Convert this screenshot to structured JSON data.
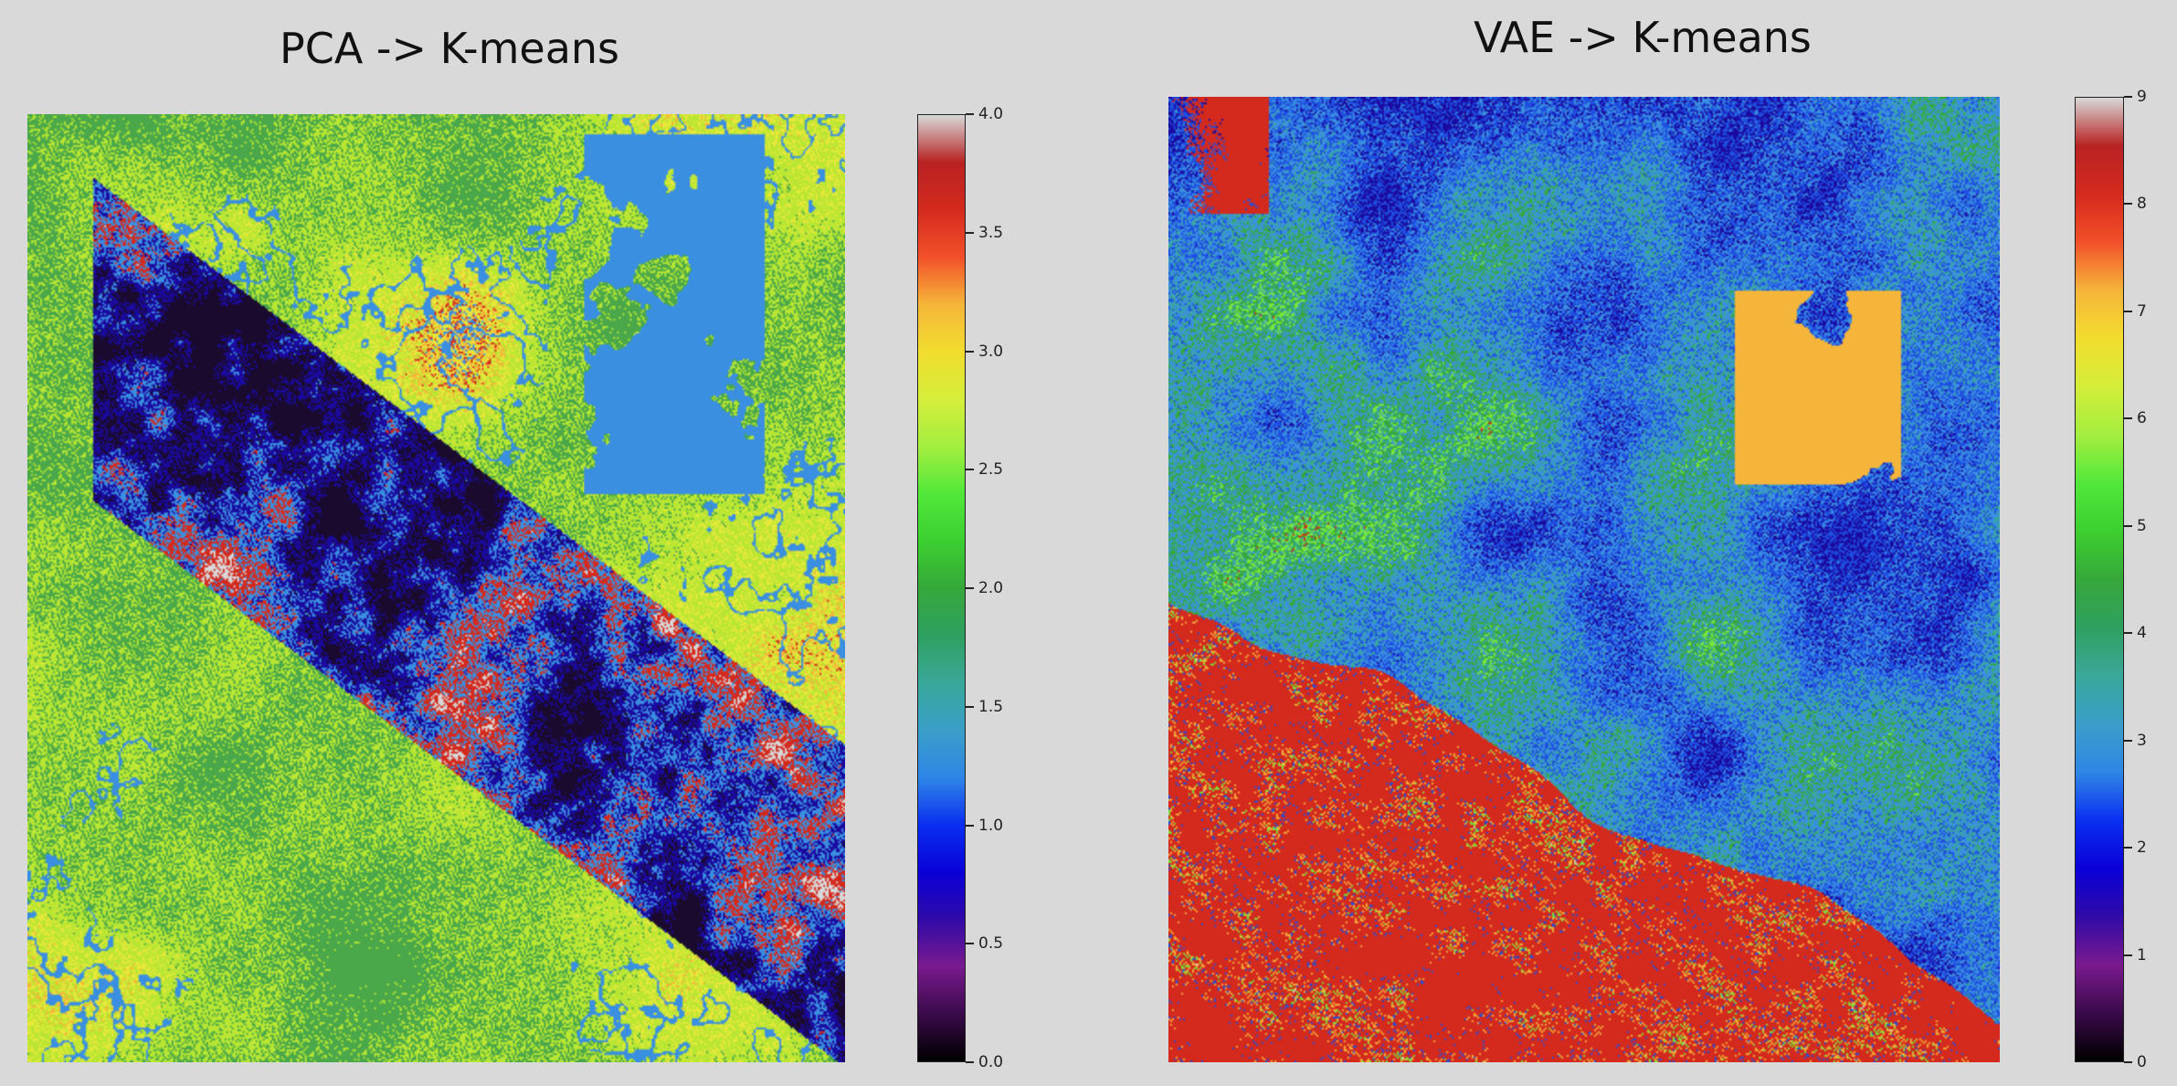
{
  "chart_data": [
    {
      "type": "heatmap",
      "title": "PCA -> K-means",
      "xlabel": "",
      "ylabel": "",
      "colormap": "nipy_spectral",
      "colorbar": {
        "vmin": 0.0,
        "vmax": 4.0,
        "ticks": [
          0.0,
          0.5,
          1.0,
          1.5,
          2.0,
          2.5,
          3.0,
          3.5,
          4.0
        ],
        "tick_labels": [
          "0.0",
          "0.5",
          "1.0",
          "1.5",
          "2.0",
          "2.5",
          "3.0",
          "3.5",
          "4.0"
        ]
      },
      "cluster_colors": [
        "#1a0a2e",
        "#1b0aa0",
        "#3a8fe0",
        "#b8e632",
        "#f5b53a"
      ],
      "grid": false
    },
    {
      "type": "heatmap",
      "title": "VAE -> K-means",
      "xlabel": "",
      "ylabel": "",
      "colormap": "nipy_spectral",
      "colorbar": {
        "vmin": 0,
        "vmax": 9,
        "ticks": [
          0,
          1,
          2,
          3,
          4,
          5,
          6,
          7,
          8,
          9
        ],
        "tick_labels": [
          "0",
          "1",
          "2",
          "3",
          "4",
          "5",
          "6",
          "7",
          "8",
          "9"
        ]
      },
      "grid": false
    }
  ],
  "colormap_stops": [
    [
      0.0,
      "#000000"
    ],
    [
      0.05,
      "#3a0a4a"
    ],
    [
      0.1,
      "#7a1a8e"
    ],
    [
      0.15,
      "#300aa8"
    ],
    [
      0.2,
      "#0a00d8"
    ],
    [
      0.25,
      "#0a2ff0"
    ],
    [
      0.3,
      "#2f86e6"
    ],
    [
      0.35,
      "#3a9ec8"
    ],
    [
      0.4,
      "#3aa89a"
    ],
    [
      0.45,
      "#2fa060"
    ],
    [
      0.5,
      "#36a83a"
    ],
    [
      0.55,
      "#3ccf30"
    ],
    [
      0.6,
      "#52e83a"
    ],
    [
      0.65,
      "#a4ee40"
    ],
    [
      0.7,
      "#d4ee3a"
    ],
    [
      0.75,
      "#f2dd2e"
    ],
    [
      0.8,
      "#f5b53a"
    ],
    [
      0.85,
      "#f2502a"
    ],
    [
      0.9,
      "#d42a1e"
    ],
    [
      0.95,
      "#b82222"
    ],
    [
      1.0,
      "#d8d8d8"
    ]
  ]
}
